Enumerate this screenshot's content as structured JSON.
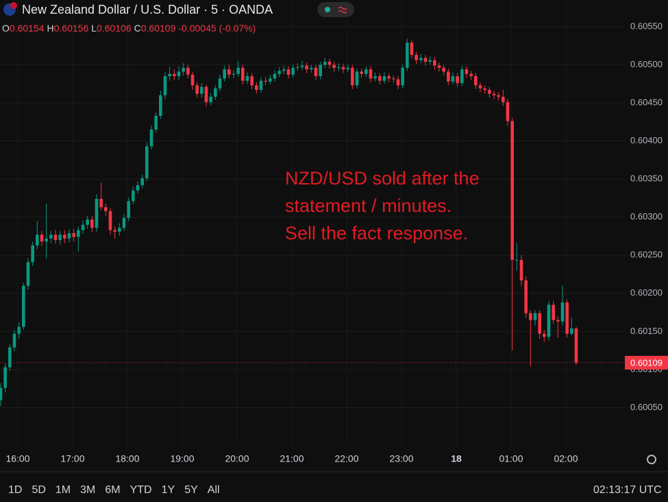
{
  "chart_data": {
    "type": "candlestick",
    "title": "New Zealand Dollar / U.S. Dollar · 5 · OANDA",
    "ohlc_letters": [
      "O",
      "H",
      "L",
      "C"
    ],
    "change": -0.00045,
    "change_pct": "(-0.07%)",
    "annotation": [
      "NZD/USD sold after the",
      "statement / minutes.",
      "Sell the fact response."
    ],
    "up_color": "#089981",
    "down_color": "#f23645",
    "grid": true,
    "ylim": [
      0.6,
      0.60585
    ],
    "yticks": [
      {
        "value": 0.6005,
        "label": "0.60050"
      },
      {
        "value": 0.601,
        "label": "0.60100"
      },
      {
        "value": 0.6015,
        "label": "0.60150"
      },
      {
        "value": 0.602,
        "label": "0.60200"
      },
      {
        "value": 0.6025,
        "label": "0.60250"
      },
      {
        "value": 0.603,
        "label": "0.60300"
      },
      {
        "value": 0.6035,
        "label": "0.60350"
      },
      {
        "value": 0.604,
        "label": "0.60400"
      },
      {
        "value": 0.6045,
        "label": "0.60450"
      },
      {
        "value": 0.605,
        "label": "0.60500"
      },
      {
        "value": 0.6055,
        "label": "0.60550"
      }
    ],
    "xticks": [
      "16:00",
      "17:00",
      "18:00",
      "19:00",
      "20:00",
      "21:00",
      "22:00",
      "23:00",
      "18",
      "01:00",
      "02:00"
    ],
    "open": [
      0.6006,
      0.60076,
      0.60103,
      0.60129,
      0.60147,
      0.60156,
      0.6021,
      0.60241,
      0.60263,
      0.60277,
      0.60268,
      0.60272,
      0.60277,
      0.6027,
      0.60277,
      0.60272,
      0.60279,
      0.60274,
      0.60283,
      0.6029,
      0.60297,
      0.60286,
      0.60324,
      0.60313,
      0.60308,
      0.60283,
      0.60281,
      0.60286,
      0.60299,
      0.60321,
      0.60335,
      0.60342,
      0.60351,
      0.60393,
      0.60415,
      0.60433,
      0.6046,
      0.60485,
      0.60488,
      0.60485,
      0.60491,
      0.60496,
      0.60487,
      0.60473,
      0.60462,
      0.60471,
      0.60451,
      0.60458,
      0.60469,
      0.60482,
      0.60494,
      0.60487,
      0.60488,
      0.60496,
      0.60479,
      0.60485,
      0.60473,
      0.60467,
      0.60479,
      0.60478,
      0.60482,
      0.60488,
      0.60492,
      0.60494,
      0.60487,
      0.60496,
      0.60497,
      0.60499,
      0.60494,
      0.60496,
      0.60485,
      0.605,
      0.60504,
      0.605,
      0.60496,
      0.60497,
      0.60494,
      0.60496,
      0.60473,
      0.60491,
      0.60488,
      0.60494,
      0.60482,
      0.60485,
      0.60479,
      0.60485,
      0.60482,
      0.60481,
      0.60473,
      0.60496,
      0.60529,
      0.60513,
      0.60506,
      0.60509,
      0.60504,
      0.60506,
      0.60499,
      0.60496,
      0.60491,
      0.60478,
      0.60485,
      0.60476,
      0.60494,
      0.60488,
      0.60485,
      0.60473,
      0.60469,
      0.60467,
      0.60462,
      0.6046,
      0.60458,
      0.60451,
      0.60426,
      0.60244,
      0.60244,
      0.60217,
      0.60174,
      0.60165,
      0.60174,
      0.60147,
      0.60143,
      0.60185,
      0.60165,
      0.60163,
      0.60188,
      0.60147,
      0.60154
    ],
    "high": [
      0.60082,
      0.60108,
      0.60133,
      0.60152,
      0.60162,
      0.60214,
      0.60246,
      0.60268,
      0.60295,
      0.60282,
      0.60318,
      0.60282,
      0.60283,
      0.60282,
      0.60283,
      0.60284,
      0.60285,
      0.60288,
      0.60296,
      0.60302,
      0.60302,
      0.6033,
      0.60345,
      0.60318,
      0.60312,
      0.60288,
      0.60292,
      0.60304,
      0.60326,
      0.6034,
      0.60347,
      0.60356,
      0.60398,
      0.6042,
      0.60438,
      0.60466,
      0.6049,
      0.60497,
      0.60494,
      0.60498,
      0.60502,
      0.605,
      0.60491,
      0.60477,
      0.60476,
      0.60474,
      0.60463,
      0.60473,
      0.60487,
      0.60499,
      0.605,
      0.60493,
      0.60505,
      0.605,
      0.6049,
      0.60489,
      0.60477,
      0.60484,
      0.60484,
      0.60487,
      0.60493,
      0.60497,
      0.60499,
      0.60498,
      0.605,
      0.60502,
      0.60505,
      0.60503,
      0.605,
      0.605,
      0.60504,
      0.60509,
      0.60508,
      0.60504,
      0.60502,
      0.60501,
      0.605,
      0.605,
      0.60495,
      0.60495,
      0.60498,
      0.60498,
      0.6049,
      0.60489,
      0.6049,
      0.60489,
      0.60486,
      0.60485,
      0.605,
      0.60534,
      0.60532,
      0.60517,
      0.60514,
      0.60513,
      0.60511,
      0.6051,
      0.60503,
      0.605,
      0.60495,
      0.6049,
      0.60489,
      0.60499,
      0.60498,
      0.60492,
      0.60489,
      0.60477,
      0.60473,
      0.60471,
      0.60466,
      0.60464,
      0.60467,
      0.60455,
      0.6043,
      0.60266,
      0.6025,
      0.60222,
      0.60178,
      0.60178,
      0.60178,
      0.60152,
      0.6019,
      0.6019,
      0.6017,
      0.6021,
      0.60192,
      0.60168,
      0.60156
    ],
    "low": [
      0.60052,
      0.6007,
      0.60098,
      0.60124,
      0.6014,
      0.60152,
      0.60205,
      0.60236,
      0.60258,
      0.60262,
      0.60246,
      0.60266,
      0.60265,
      0.60264,
      0.60266,
      0.60267,
      0.60268,
      0.60255,
      0.60278,
      0.60285,
      0.6028,
      0.60281,
      0.60309,
      0.60302,
      0.60277,
      0.60272,
      0.60276,
      0.60282,
      0.60295,
      0.60317,
      0.60331,
      0.60338,
      0.60347,
      0.60389,
      0.60411,
      0.60429,
      0.60455,
      0.60479,
      0.6048,
      0.6048,
      0.60486,
      0.60482,
      0.60467,
      0.60457,
      0.60457,
      0.60445,
      0.60447,
      0.60454,
      0.60465,
      0.60478,
      0.60482,
      0.60482,
      0.60484,
      0.60474,
      0.60475,
      0.60468,
      0.60462,
      0.60463,
      0.60473,
      0.60474,
      0.60478,
      0.60484,
      0.60488,
      0.60482,
      0.60483,
      0.60492,
      0.60493,
      0.60489,
      0.6049,
      0.6048,
      0.60481,
      0.60496,
      0.60495,
      0.60491,
      0.60492,
      0.60489,
      0.6049,
      0.60468,
      0.60469,
      0.60483,
      0.60484,
      0.60477,
      0.60478,
      0.60474,
      0.60475,
      0.60477,
      0.60476,
      0.60468,
      0.60469,
      0.60492,
      0.60508,
      0.60501,
      0.60502,
      0.60499,
      0.605,
      0.60494,
      0.60491,
      0.60486,
      0.60473,
      0.60474,
      0.60471,
      0.60472,
      0.60483,
      0.6048,
      0.60468,
      0.60464,
      0.60462,
      0.60457,
      0.60455,
      0.60453,
      0.60446,
      0.6042,
      0.60125,
      0.6023,
      0.6021,
      0.60168,
      0.60104,
      0.60158,
      0.6014,
      0.60136,
      0.60138,
      0.6016,
      0.60142,
      0.60158,
      0.60142,
      0.60145,
      0.60106
    ],
    "close": [
      0.60076,
      0.60103,
      0.60129,
      0.60147,
      0.60156,
      0.6021,
      0.60241,
      0.60263,
      0.60277,
      0.60268,
      0.60272,
      0.60277,
      0.6027,
      0.60277,
      0.60272,
      0.60279,
      0.60274,
      0.60283,
      0.6029,
      0.60297,
      0.60286,
      0.60324,
      0.60313,
      0.60308,
      0.60283,
      0.60281,
      0.60286,
      0.60299,
      0.60321,
      0.60335,
      0.60342,
      0.60351,
      0.60393,
      0.60415,
      0.60433,
      0.6046,
      0.60485,
      0.60488,
      0.60485,
      0.60491,
      0.60496,
      0.60487,
      0.60473,
      0.60462,
      0.60471,
      0.60451,
      0.60458,
      0.60469,
      0.60482,
      0.60494,
      0.60487,
      0.60488,
      0.60496,
      0.60479,
      0.60485,
      0.60473,
      0.60467,
      0.60479,
      0.60478,
      0.60482,
      0.60488,
      0.60492,
      0.60494,
      0.60487,
      0.60496,
      0.60497,
      0.60499,
      0.60494,
      0.60496,
      0.60485,
      0.605,
      0.60504,
      0.605,
      0.60496,
      0.60497,
      0.60494,
      0.60496,
      0.60473,
      0.60491,
      0.60488,
      0.60494,
      0.60482,
      0.60485,
      0.60479,
      0.60485,
      0.60482,
      0.60481,
      0.60473,
      0.60496,
      0.60529,
      0.60513,
      0.60506,
      0.60509,
      0.60504,
      0.60506,
      0.60499,
      0.60496,
      0.60491,
      0.60478,
      0.60485,
      0.60476,
      0.60494,
      0.60488,
      0.60485,
      0.60473,
      0.60469,
      0.60467,
      0.60462,
      0.6046,
      0.60458,
      0.60451,
      0.60426,
      0.60244,
      0.60244,
      0.60217,
      0.60174,
      0.60165,
      0.60174,
      0.60147,
      0.60143,
      0.60185,
      0.60165,
      0.60163,
      0.60188,
      0.60147,
      0.60154,
      0.60109
    ]
  },
  "toolbar": {
    "ranges": [
      "1D",
      "5D",
      "1M",
      "3M",
      "6M",
      "YTD",
      "1Y",
      "5Y",
      "All"
    ],
    "clock": "02:13:17 UTC"
  }
}
